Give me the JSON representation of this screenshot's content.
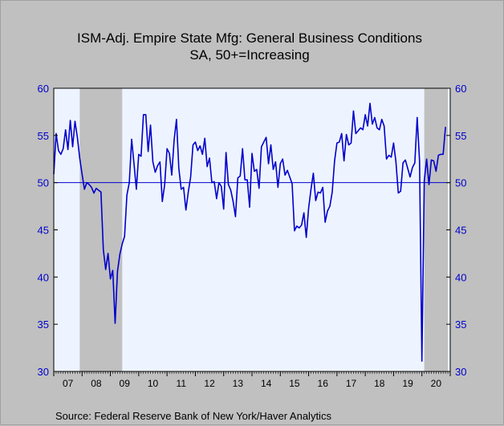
{
  "chart_data": {
    "type": "line",
    "title": "ISM-Adj. Empire State Mfg: General Business Conditions",
    "subtitle": "SA, 50+=Increasing",
    "source": "Source:  Federal Reserve Bank of New York/Haver Analytics",
    "ylim": [
      30,
      60
    ],
    "yticks": [
      30,
      35,
      40,
      45,
      50,
      55,
      60
    ],
    "reference_line": 50,
    "xlim": [
      2007.0,
      2021.0
    ],
    "xtick_labels": [
      "07",
      "08",
      "09",
      "10",
      "11",
      "12",
      "13",
      "14",
      "15",
      "16",
      "17",
      "18",
      "19",
      "20"
    ],
    "recessions": [
      [
        2007.917,
        2009.417
      ],
      [
        2020.083,
        2020.917
      ]
    ],
    "grid": false,
    "series": [
      {
        "color": "#0000cc",
        "x_start": 2007.0,
        "x_step": 0.08333,
        "values": [
          50.9,
          55.2,
          53.4,
          53.0,
          53.6,
          55.6,
          53.5,
          56.6,
          53.8,
          56.5,
          54.8,
          52.6,
          50.9,
          49.3,
          50.0,
          49.8,
          49.5,
          48.9,
          49.4,
          49.2,
          49.0,
          42.9,
          40.8,
          42.5,
          39.8,
          40.7,
          35.1,
          40.6,
          42.4,
          43.5,
          44.3,
          48.7,
          50.0,
          54.6,
          52.0,
          49.3,
          53.0,
          52.8,
          57.2,
          57.2,
          53.3,
          56.1,
          52.2,
          51.1,
          51.8,
          52.2,
          48.0,
          49.8,
          53.6,
          53.1,
          50.8,
          54.5,
          56.7,
          51.5,
          49.3,
          49.5,
          47.1,
          49.0,
          50.6,
          54.0,
          54.3,
          53.4,
          53.9,
          53.0,
          54.7,
          51.7,
          52.6,
          50.0,
          50.1,
          48.3,
          50.0,
          49.6,
          47.2,
          53.2,
          49.8,
          49.2,
          48.0,
          46.4,
          50.5,
          50.7,
          53.6,
          50.3,
          50.3,
          47.4,
          53.1,
          51.2,
          51.4,
          49.4,
          53.8,
          54.3,
          54.8,
          52.0,
          54.0,
          51.4,
          52.2,
          49.5,
          52.0,
          52.5,
          50.8,
          51.3,
          50.6,
          49.9,
          44.9,
          45.4,
          45.2,
          45.5,
          46.8,
          44.2,
          47.3,
          49.3,
          51.0,
          48.1,
          49.0,
          48.9,
          49.5,
          45.8,
          47.0,
          47.5,
          49.0,
          52.3,
          54.2,
          54.3,
          55.2,
          52.3,
          55.1,
          54.0,
          54.2,
          57.6,
          55.2,
          55.5,
          55.8,
          55.6,
          57.2,
          56.0,
          58.4,
          56.2,
          56.9,
          55.8,
          55.6,
          56.7,
          56.0,
          52.5,
          52.9,
          52.7,
          54.2,
          52.2,
          48.9,
          49.1,
          52.1,
          52.4,
          51.5,
          50.6,
          51.6,
          52.1,
          56.9,
          52.3,
          31.1,
          50.2,
          52.5,
          49.8,
          52.4,
          52.3,
          51.2,
          52.9,
          53.0,
          53.0,
          55.9
        ]
      }
    ]
  }
}
